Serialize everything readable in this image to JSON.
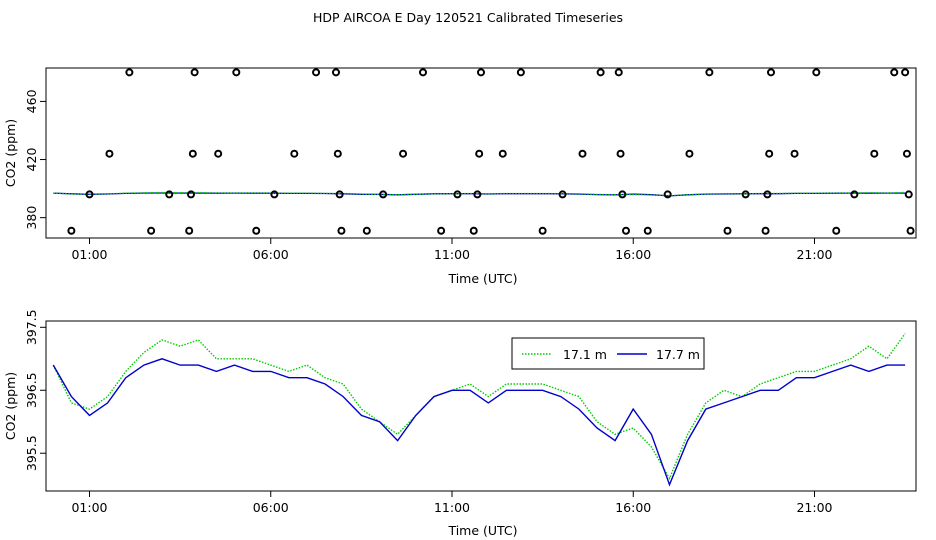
{
  "figure": {
    "title": "HDP AIRCOA E  Day 120521  Calibrated Timeseries"
  },
  "chart_data": [
    {
      "type": "scatter",
      "xlabel": "Time (UTC)",
      "ylabel": "CO2 (ppm)",
      "xlim": [
        -0.2,
        23.8
      ],
      "ylim": [
        366,
        483
      ],
      "xtick_values": [
        1,
        6,
        11,
        16,
        21
      ],
      "xtick_labels": [
        "01:00",
        "06:00",
        "11:00",
        "16:00",
        "21:00"
      ],
      "ytick_values": [
        380,
        420,
        460
      ],
      "ytick_labels": [
        "380",
        "420",
        "460"
      ],
      "grid": false,
      "legend": "none",
      "series": [
        {
          "marker": "open-circle",
          "color": "#000000",
          "points": [
            [
              0.5,
              371
            ],
            [
              1.0,
              396
            ],
            [
              1.55,
              424
            ],
            [
              2.1,
              480
            ],
            [
              2.7,
              371
            ],
            [
              3.2,
              396
            ],
            [
              3.75,
              371
            ],
            [
              3.8,
              396
            ],
            [
              3.85,
              424
            ],
            [
              3.9,
              480
            ],
            [
              4.55,
              424
            ],
            [
              5.05,
              480
            ],
            [
              5.6,
              371
            ],
            [
              6.1,
              396
            ],
            [
              6.65,
              424
            ],
            [
              7.25,
              480
            ],
            [
              7.8,
              480
            ],
            [
              7.85,
              424
            ],
            [
              7.9,
              396
            ],
            [
              7.95,
              371
            ],
            [
              8.65,
              371
            ],
            [
              9.1,
              396
            ],
            [
              9.65,
              424
            ],
            [
              10.2,
              480
            ],
            [
              10.7,
              371
            ],
            [
              11.15,
              396
            ],
            [
              11.6,
              371
            ],
            [
              11.7,
              396
            ],
            [
              11.75,
              424
            ],
            [
              11.8,
              480
            ],
            [
              12.4,
              424
            ],
            [
              12.9,
              480
            ],
            [
              13.5,
              371
            ],
            [
              14.05,
              396
            ],
            [
              14.6,
              424
            ],
            [
              15.1,
              480
            ],
            [
              15.6,
              480
            ],
            [
              15.65,
              424
            ],
            [
              15.7,
              396
            ],
            [
              15.8,
              371
            ],
            [
              16.4,
              371
            ],
            [
              16.95,
              396
            ],
            [
              17.55,
              424
            ],
            [
              18.1,
              480
            ],
            [
              18.6,
              371
            ],
            [
              19.1,
              396
            ],
            [
              19.65,
              371
            ],
            [
              19.7,
              396
            ],
            [
              19.75,
              424
            ],
            [
              19.8,
              480
            ],
            [
              20.45,
              424
            ],
            [
              21.05,
              480
            ],
            [
              21.6,
              371
            ],
            [
              22.1,
              396
            ],
            [
              22.65,
              424
            ],
            [
              23.2,
              480
            ],
            [
              23.5,
              480
            ],
            [
              23.55,
              424
            ],
            [
              23.6,
              396
            ],
            [
              23.65,
              371
            ]
          ]
        },
        {
          "name": "17.1 m",
          "color": "#00cc00",
          "line": "lower-panel-17.1"
        },
        {
          "name": "17.7 m",
          "color": "#0000cc",
          "line": "lower-panel-17.7"
        }
      ]
    },
    {
      "type": "line",
      "xlabel": "Time (UTC)",
      "ylabel": "CO2 (ppm)",
      "xlim": [
        -0.2,
        23.8
      ],
      "ylim": [
        394.9,
        397.6
      ],
      "xtick_values": [
        1,
        6,
        11,
        16,
        21
      ],
      "xtick_labels": [
        "01:00",
        "06:00",
        "11:00",
        "16:00",
        "21:00"
      ],
      "ytick_values": [
        395.5,
        396.5,
        397.5
      ],
      "ytick_labels": [
        "395.5",
        "396.5",
        "397.5"
      ],
      "grid": false,
      "legend": "top-right",
      "series": [
        {
          "name": "17.1 m",
          "color": "#00cc00",
          "style": "dotted",
          "x": [
            0.0,
            0.5,
            1.0,
            1.5,
            2.0,
            2.5,
            3.0,
            3.5,
            4.0,
            4.5,
            5.0,
            5.5,
            6.0,
            6.5,
            7.0,
            7.5,
            8.0,
            8.5,
            9.0,
            9.5,
            10.0,
            10.5,
            11.0,
            11.5,
            12.0,
            12.5,
            13.0,
            13.5,
            14.0,
            14.5,
            15.0,
            15.5,
            16.0,
            16.5,
            17.0,
            17.5,
            18.0,
            18.5,
            19.0,
            19.5,
            20.0,
            20.5,
            21.0,
            21.5,
            22.0,
            22.5,
            23.0,
            23.5
          ],
          "y": [
            396.9,
            396.3,
            396.2,
            396.4,
            396.8,
            397.1,
            397.3,
            397.2,
            397.3,
            397.0,
            397.0,
            397.0,
            396.9,
            396.8,
            396.9,
            396.7,
            396.6,
            396.2,
            396.0,
            395.8,
            396.1,
            396.4,
            396.5,
            396.6,
            396.4,
            396.6,
            396.6,
            396.6,
            396.5,
            396.4,
            396.0,
            395.8,
            395.9,
            395.6,
            395.1,
            395.8,
            396.3,
            396.5,
            396.4,
            396.6,
            396.7,
            396.8,
            396.8,
            396.9,
            397.0,
            397.2,
            397.0,
            397.4
          ]
        },
        {
          "name": "17.7 m",
          "color": "#0000cc",
          "style": "solid",
          "x": [
            0.0,
            0.5,
            1.0,
            1.5,
            2.0,
            2.5,
            3.0,
            3.5,
            4.0,
            4.5,
            5.0,
            5.5,
            6.0,
            6.5,
            7.0,
            7.5,
            8.0,
            8.5,
            9.0,
            9.5,
            10.0,
            10.5,
            11.0,
            11.5,
            12.0,
            12.5,
            13.0,
            13.5,
            14.0,
            14.5,
            15.0,
            15.5,
            16.0,
            16.5,
            17.0,
            17.5,
            18.0,
            18.5,
            19.0,
            19.5,
            20.0,
            20.5,
            21.0,
            21.5,
            22.0,
            22.5,
            23.0,
            23.5
          ],
          "y": [
            396.9,
            396.4,
            396.1,
            396.3,
            396.7,
            396.9,
            397.0,
            396.9,
            396.9,
            396.8,
            396.9,
            396.8,
            396.8,
            396.7,
            396.7,
            396.6,
            396.4,
            396.1,
            396.0,
            395.7,
            396.1,
            396.4,
            396.5,
            396.5,
            396.3,
            396.5,
            396.5,
            396.5,
            396.4,
            396.2,
            395.9,
            395.7,
            396.2,
            395.8,
            395.0,
            395.7,
            396.2,
            396.3,
            396.4,
            396.5,
            396.5,
            396.7,
            396.7,
            396.8,
            396.9,
            396.8,
            396.9,
            396.9
          ]
        }
      ]
    }
  ]
}
